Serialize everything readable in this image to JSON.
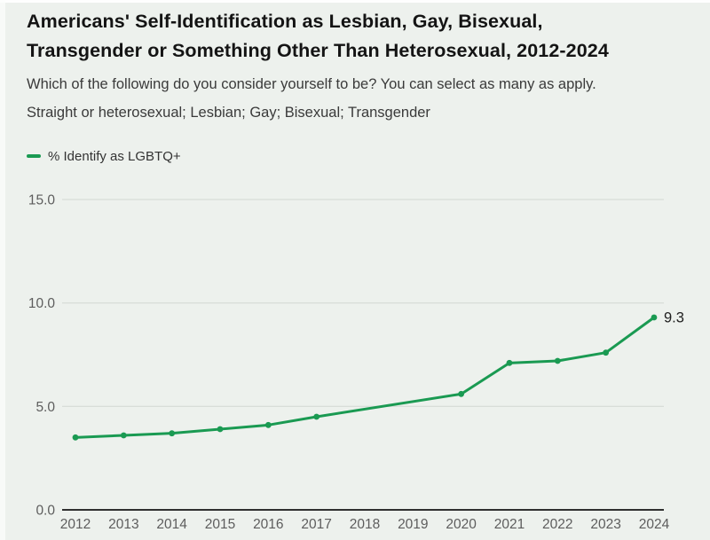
{
  "header": {
    "title": "Americans' Self-Identification as Lesbian, Gay, Bisexual, Transgender or Something Other Than Heterosexual, 2012-2024",
    "title_lines": [
      "Americans' Self-Identification as Lesbian, Gay, Bisexual,",
      "Transgender or Something Other Than Heterosexual, 2012-2024"
    ],
    "subtitle_question": "Which of the following do you consider yourself to be? You can select as many as apply.",
    "subtitle_options": "Straight or heterosexual; Lesbian; Gay; Bisexual; Transgender"
  },
  "legend": {
    "label": "% Identify as LGBTQ+"
  },
  "colors": {
    "line_green": "#1a9a52",
    "background": "#edf1ed",
    "gridline": "#d9ded9",
    "axis_line": "#2f2f2f",
    "tick_label": "#5d5d5d",
    "end_label": "#1f1f1f"
  },
  "chart_data": {
    "type": "line",
    "title": "Americans' Self-Identification as Lesbian, Gay, Bisexual, Transgender or Something Other Than Heterosexual, 2012-2024",
    "categories": [
      "2012",
      "2013",
      "2014",
      "2015",
      "2016",
      "2017",
      "2018",
      "2019",
      "2020",
      "2021",
      "2022",
      "2023",
      "2024"
    ],
    "series": [
      {
        "name": "% Identify as LGBTQ+",
        "values": [
          3.5,
          3.6,
          3.7,
          3.9,
          4.1,
          4.5,
          null,
          null,
          5.6,
          7.1,
          7.2,
          7.6,
          9.3
        ],
        "color": "#1a9a52"
      }
    ],
    "end_label": "9.3",
    "xlabel": "",
    "ylabel": "",
    "ylim": [
      0,
      15
    ],
    "y_ticks": [
      15,
      10,
      5,
      0
    ],
    "y_tick_labels": [
      "15.0",
      "10.0",
      "5.0",
      "0.0"
    ],
    "grid": true,
    "legend_position": "top-left",
    "notes": "No survey markers for 2018 and 2019; line interpolated between 2017 and 2020."
  }
}
